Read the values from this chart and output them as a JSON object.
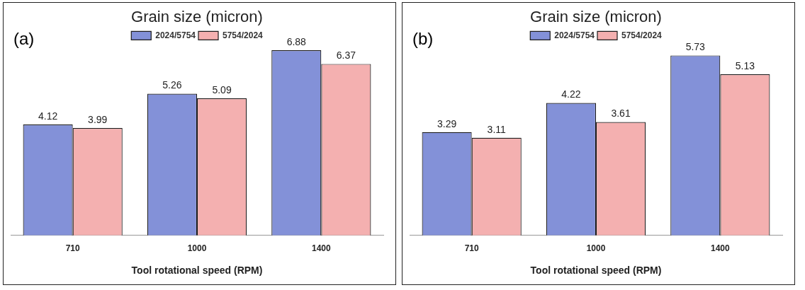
{
  "chart_data": [
    {
      "type": "bar",
      "title": "Grain size (micron)",
      "xlabel": "Tool rotational speed (RPM)",
      "categories": [
        "710",
        "1000",
        "1400"
      ],
      "series": [
        {
          "name": "2024/5754",
          "color": "#8391d8",
          "values": [
            4.12,
            5.26,
            6.88
          ]
        },
        {
          "name": "5754/2024",
          "color": "#f4b0b0",
          "values": [
            3.99,
            5.09,
            6.37
          ]
        }
      ],
      "data_labels": true,
      "legend": "top",
      "grid": false,
      "tick_labels": "x",
      "annotations": [
        "(a)"
      ]
    },
    {
      "type": "bar",
      "title": "Grain size (micron)",
      "xlabel": "Tool rotational speed (RPM)",
      "categories": [
        "710",
        "1000",
        "1400"
      ],
      "series": [
        {
          "name": "2024/5754",
          "color": "#8391d8",
          "values": [
            3.29,
            4.22,
            5.73
          ]
        },
        {
          "name": "5754/2024",
          "color": "#f4b0b0",
          "values": [
            3.11,
            3.61,
            5.13
          ]
        }
      ],
      "data_labels": true,
      "legend": "top",
      "grid": false,
      "tick_labels": "x",
      "annotations": [
        "(b)"
      ]
    }
  ]
}
